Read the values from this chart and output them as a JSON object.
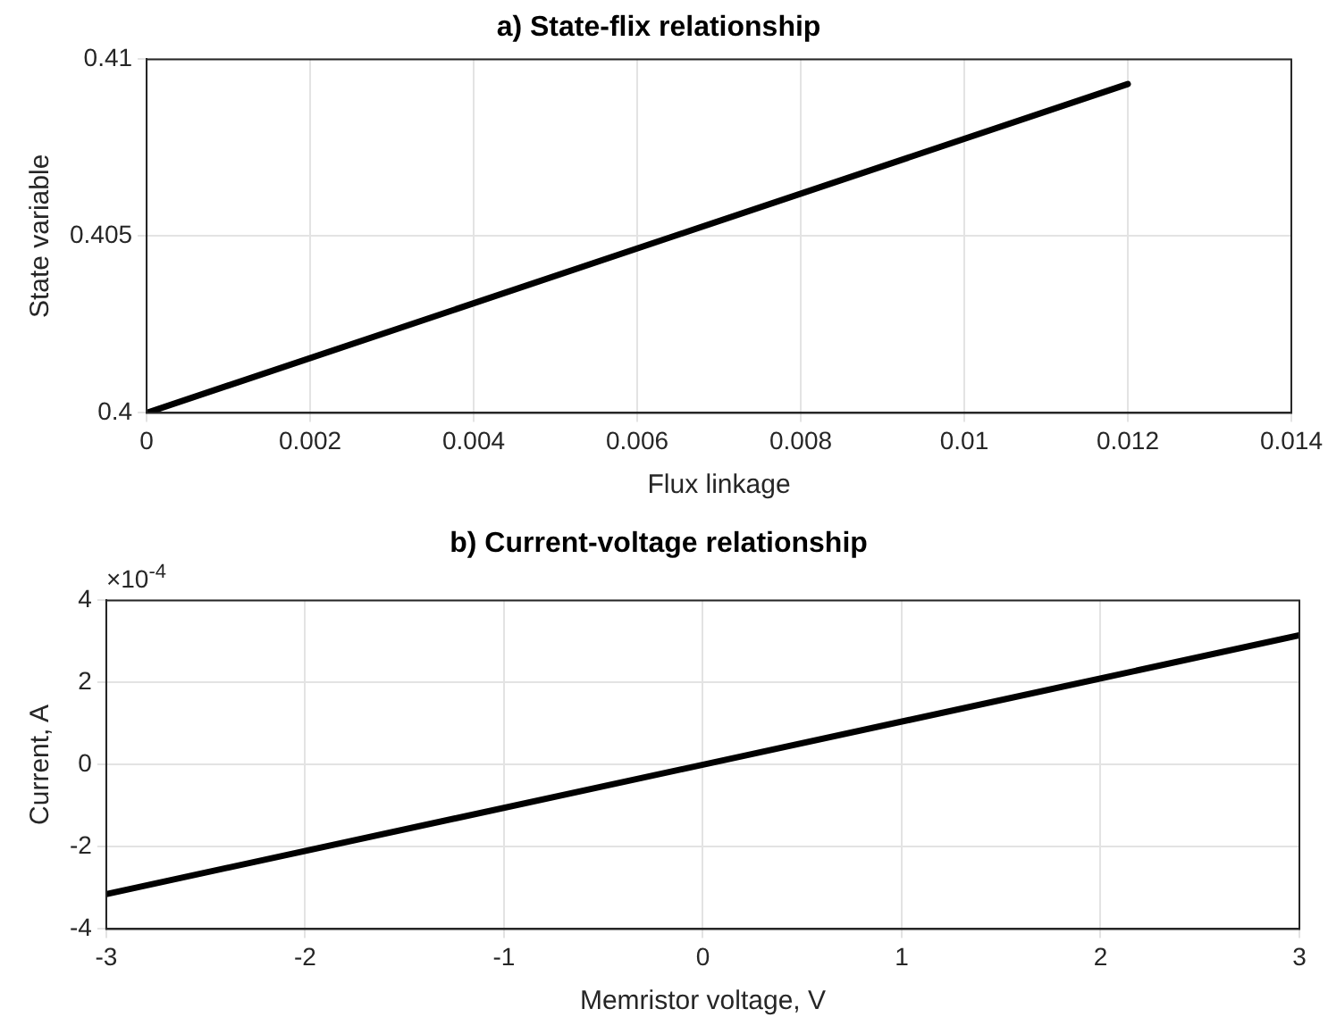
{
  "chart_data": [
    {
      "type": "line",
      "title": "a) State-flix relationship",
      "xlabel": "Flux linkage",
      "ylabel": "State variable",
      "x": [
        0,
        0.012
      ],
      "series": [
        {
          "color": "#000000",
          "values": [
            0.4,
            0.4093
          ]
        }
      ],
      "xlim": [
        0,
        0.014
      ],
      "xticks": [
        0,
        0.002,
        0.004,
        0.006,
        0.008,
        0.01,
        0.012,
        0.014
      ],
      "ylim": [
        0.4,
        0.41
      ],
      "yticks": [
        0.4,
        0.405,
        0.41
      ],
      "grid": true,
      "marker": "none",
      "line_style": "solid"
    },
    {
      "type": "line",
      "title": "b) Current-voltage relationship",
      "xlabel": "Memristor voltage, V",
      "ylabel": "Current, A",
      "x": [
        -3,
        3
      ],
      "series": [
        {
          "color": "#000000",
          "values": [
            -3.15,
            3.15
          ]
        }
      ],
      "xlim": [
        -3,
        3
      ],
      "xticks": [
        -3,
        -2,
        -1,
        0,
        1,
        2,
        3
      ],
      "ylim": [
        -4,
        4
      ],
      "yticks": [
        -4,
        -2,
        0,
        2,
        4
      ],
      "grid": true,
      "marker": "none",
      "line_style": "solid",
      "annotations": [
        "×10$^{-4}$"
      ]
    }
  ]
}
